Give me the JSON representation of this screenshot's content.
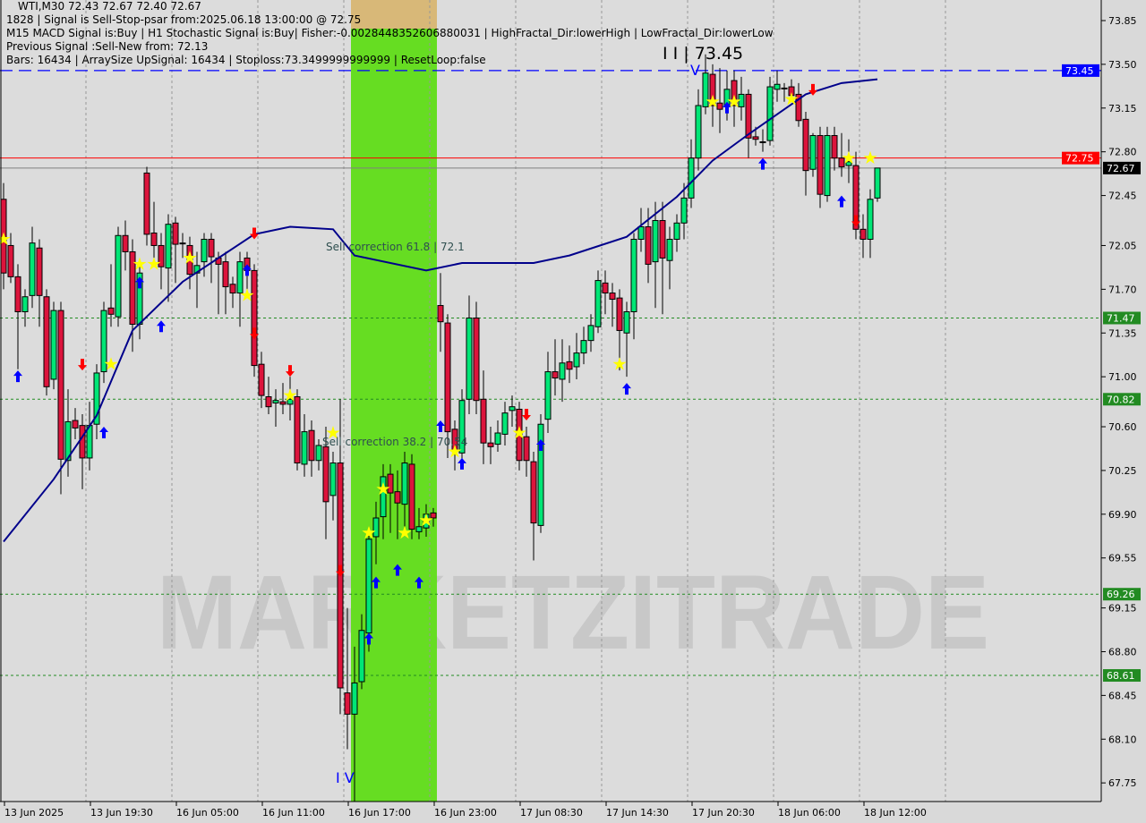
{
  "header": {
    "symbol_line": "WTI,M30  72.43 72.67 72.40 72.67",
    "signal_line": "1828 | Signal is Sell-Stop-psar from:2025.06.18 13:00:00 @ 72.75",
    "macd_line": "M15 MACD Signal is:Buy | H1 Stochastic Signal is:Buy| Fisher:-0.0028448352606880031 | HighFractal_Dir:lowerHigh | LowFractal_Dir:lowerLow",
    "previous_line": "Previous Signal :Sell-New from: 72.13",
    "bars_line": "Bars: 16434 | ArraySize UpSignal: 16434 | Stoploss:73.3499999999999 | ResetLoop:false"
  },
  "annotations": {
    "sell_618": "Sell correction 61.8 | 72.1",
    "sell_382": "Sell correction 38.2 | 70.54",
    "wave_top": "I I | 73.45",
    "wave_top_v": "V",
    "wave_bottom": "I V"
  },
  "watermark": "MARKETZITRADE",
  "colors": {
    "background": "#d9d9d9",
    "bull": "#00e676",
    "bear": "#dc143c",
    "ma": "#00008b",
    "resistance": "#0000ff",
    "signal": "#ff0000",
    "price": "#000000",
    "level": "#228b22",
    "zone": "#66dd22"
  },
  "chart_data": {
    "type": "candlestick",
    "symbol": "WTI",
    "timeframe": "M30",
    "ylim": [
      67.6,
      74.0
    ],
    "y_ticks": [
      73.85,
      73.5,
      73.15,
      72.8,
      72.45,
      72.05,
      71.7,
      71.35,
      71.0,
      70.6,
      70.25,
      69.9,
      69.55,
      69.15,
      68.8,
      68.45,
      68.1,
      67.75
    ],
    "x_ticks": [
      "13 Jun 2025",
      "13 Jun 19:30",
      "16 Jun 05:00",
      "16 Jun 11:00",
      "16 Jun 17:00",
      "16 Jun 23:00",
      "17 Jun 08:30",
      "17 Jun 14:30",
      "17 Jun 20:30",
      "18 Jun 06:00",
      "18 Jun 12:00"
    ],
    "price_labels": [
      {
        "value": "73.45",
        "bg": "#0000ff",
        "fg": "#ffffff",
        "line": "dashed"
      },
      {
        "value": "72.75",
        "bg": "#ff0000",
        "fg": "#ffffff",
        "line": "solid"
      },
      {
        "value": "72.67",
        "bg": "#000000",
        "fg": "#ffffff",
        "line": "solid"
      },
      {
        "value": "71.47",
        "bg": "#228b22",
        "fg": "#ffffff",
        "line": "dotted"
      },
      {
        "value": "70.82",
        "bg": "#228b22",
        "fg": "#ffffff",
        "line": "dotted"
      },
      {
        "value": "69.26",
        "bg": "#228b22",
        "fg": "#ffffff",
        "line": "dotted"
      },
      {
        "value": "68.61",
        "bg": "#228b22",
        "fg": "#ffffff",
        "line": "dotted"
      }
    ],
    "candles": [
      [
        72.42,
        72.55,
        71.7,
        71.83
      ],
      [
        72.05,
        72.15,
        71.75,
        71.8
      ],
      [
        71.8,
        71.9,
        71.06,
        71.52
      ],
      [
        71.52,
        71.7,
        71.4,
        71.64
      ],
      [
        71.65,
        72.2,
        71.55,
        72.07
      ],
      [
        72.03,
        72.1,
        71.4,
        71.65
      ],
      [
        71.64,
        71.7,
        70.85,
        70.92
      ],
      [
        70.98,
        71.6,
        70.9,
        71.53
      ],
      [
        71.53,
        71.6,
        70.06,
        70.34
      ],
      [
        70.33,
        70.9,
        70.2,
        70.64
      ],
      [
        70.65,
        70.75,
        70.5,
        70.59
      ],
      [
        70.61,
        70.7,
        70.1,
        70.35
      ],
      [
        70.35,
        70.8,
        70.25,
        70.61
      ],
      [
        70.62,
        71.1,
        70.5,
        71.03
      ],
      [
        71.04,
        71.6,
        70.95,
        71.53
      ],
      [
        71.55,
        71.9,
        71.4,
        71.5
      ],
      [
        71.48,
        72.2,
        71.4,
        72.13
      ],
      [
        72.13,
        72.25,
        71.85,
        72.0
      ],
      [
        72.0,
        72.1,
        71.2,
        71.42
      ],
      [
        71.42,
        71.9,
        71.3,
        71.83
      ],
      [
        72.63,
        72.68,
        72.05,
        72.14
      ],
      [
        72.15,
        72.4,
        71.95,
        72.05
      ],
      [
        72.05,
        72.15,
        71.7,
        71.88
      ],
      [
        71.87,
        72.3,
        71.6,
        72.22
      ],
      [
        72.23,
        72.28,
        71.75,
        72.06
      ],
      [
        72.07,
        72.15,
        71.95,
        72.07
      ],
      [
        72.05,
        72.12,
        71.7,
        71.82
      ],
      [
        71.83,
        72.0,
        71.55,
        71.89
      ],
      [
        71.92,
        72.15,
        71.8,
        72.1
      ],
      [
        72.1,
        72.15,
        71.75,
        71.96
      ],
      [
        71.95,
        72.0,
        71.5,
        71.9
      ],
      [
        71.92,
        72.0,
        71.5,
        71.72
      ],
      [
        71.74,
        71.8,
        71.55,
        71.67
      ],
      [
        71.67,
        72.0,
        71.4,
        71.92
      ],
      [
        71.95,
        72.0,
        71.7,
        71.85
      ],
      [
        71.85,
        71.9,
        71.0,
        71.09
      ],
      [
        71.1,
        71.2,
        70.75,
        70.85
      ],
      [
        70.84,
        71.0,
        70.7,
        70.76
      ],
      [
        70.79,
        70.9,
        70.6,
        70.81
      ],
      [
        70.8,
        70.95,
        70.7,
        70.78
      ],
      [
        70.78,
        71.0,
        70.65,
        70.82
      ],
      [
        70.84,
        70.9,
        70.25,
        70.31
      ],
      [
        70.3,
        70.7,
        70.2,
        70.56
      ],
      [
        70.57,
        70.65,
        70.2,
        70.33
      ],
      [
        70.33,
        70.5,
        70.25,
        70.45
      ],
      [
        70.44,
        70.6,
        69.7,
        70.0
      ],
      [
        70.05,
        70.4,
        69.85,
        70.31
      ],
      [
        70.31,
        70.82,
        68.3,
        68.51
      ],
      [
        68.47,
        69.15,
        68.02,
        68.3
      ],
      [
        68.3,
        68.84,
        67.58,
        68.55
      ],
      [
        68.56,
        69.1,
        68.5,
        68.97
      ],
      [
        68.95,
        69.8,
        68.8,
        69.7
      ],
      [
        69.72,
        70.0,
        69.5,
        69.87
      ],
      [
        69.88,
        70.3,
        69.7,
        70.2
      ],
      [
        70.22,
        70.3,
        69.75,
        70.07
      ],
      [
        70.08,
        70.25,
        69.7,
        69.99
      ],
      [
        69.98,
        70.4,
        69.8,
        70.31
      ],
      [
        70.3,
        70.38,
        69.7,
        69.78
      ],
      [
        69.76,
        69.95,
        69.7,
        69.8
      ],
      [
        69.79,
        69.98,
        69.72,
        69.9
      ],
      [
        69.91,
        69.95,
        69.8,
        69.87
      ],
      [
        71.57,
        71.83,
        71.2,
        71.44
      ],
      [
        71.43,
        71.5,
        70.35,
        70.56
      ],
      [
        70.58,
        70.65,
        70.25,
        70.4
      ],
      [
        70.39,
        70.9,
        70.3,
        70.81
      ],
      [
        70.82,
        71.65,
        70.7,
        71.47
      ],
      [
        71.47,
        71.6,
        70.7,
        70.81
      ],
      [
        70.82,
        71.05,
        70.3,
        70.47
      ],
      [
        70.47,
        70.6,
        70.3,
        70.44
      ],
      [
        70.46,
        70.65,
        70.4,
        70.55
      ],
      [
        70.54,
        70.8,
        70.45,
        70.71
      ],
      [
        70.73,
        70.85,
        70.6,
        70.76
      ],
      [
        70.74,
        70.8,
        70.25,
        70.33
      ],
      [
        70.52,
        70.6,
        70.2,
        70.33
      ],
      [
        70.32,
        70.4,
        69.53,
        69.83
      ],
      [
        69.81,
        70.7,
        69.75,
        70.62
      ],
      [
        70.66,
        71.2,
        70.55,
        71.04
      ],
      [
        71.04,
        71.3,
        70.85,
        70.99
      ],
      [
        70.98,
        71.3,
        70.8,
        71.11
      ],
      [
        71.12,
        71.25,
        70.95,
        71.06
      ],
      [
        71.08,
        71.35,
        70.98,
        71.19
      ],
      [
        71.19,
        71.4,
        71.1,
        71.29
      ],
      [
        71.29,
        71.5,
        71.2,
        71.41
      ],
      [
        71.4,
        71.85,
        71.35,
        71.77
      ],
      [
        71.75,
        71.85,
        71.5,
        71.67
      ],
      [
        71.67,
        71.75,
        71.4,
        71.62
      ],
      [
        71.63,
        71.7,
        71.05,
        71.37
      ],
      [
        71.35,
        71.6,
        71.0,
        71.52
      ],
      [
        71.52,
        72.15,
        71.3,
        72.1
      ],
      [
        72.1,
        72.35,
        72.0,
        72.2
      ],
      [
        72.2,
        72.35,
        71.75,
        71.9
      ],
      [
        71.92,
        72.4,
        71.55,
        72.25
      ],
      [
        72.25,
        72.4,
        71.5,
        71.95
      ],
      [
        71.93,
        72.2,
        71.7,
        72.1
      ],
      [
        72.1,
        72.3,
        72.0,
        72.23
      ],
      [
        72.23,
        72.55,
        72.1,
        72.43
      ],
      [
        72.43,
        72.9,
        72.35,
        72.75
      ],
      [
        72.75,
        73.3,
        72.65,
        73.17
      ],
      [
        73.16,
        73.58,
        73.1,
        73.43
      ],
      [
        73.42,
        73.5,
        73.0,
        73.17
      ],
      [
        73.19,
        73.47,
        72.95,
        73.14
      ],
      [
        73.16,
        73.45,
        73.05,
        73.3
      ],
      [
        73.37,
        73.45,
        73.0,
        73.17
      ],
      [
        73.16,
        73.4,
        73.05,
        73.26
      ],
      [
        73.26,
        73.3,
        72.75,
        72.91
      ],
      [
        72.92,
        73.0,
        72.85,
        72.9
      ],
      [
        72.88,
        72.98,
        72.8,
        72.88
      ],
      [
        72.89,
        73.4,
        72.85,
        73.32
      ],
      [
        73.3,
        73.45,
        73.2,
        73.34
      ],
      [
        73.31,
        73.35,
        73.2,
        73.31
      ],
      [
        73.32,
        73.38,
        73.2,
        73.25
      ],
      [
        73.26,
        73.35,
        73.0,
        73.05
      ],
      [
        73.06,
        73.12,
        72.45,
        72.65
      ],
      [
        72.66,
        72.95,
        72.6,
        72.93
      ],
      [
        72.93,
        73.0,
        72.35,
        72.46
      ],
      [
        72.45,
        73.0,
        72.4,
        72.93
      ],
      [
        72.93,
        73.0,
        72.65,
        72.75
      ],
      [
        72.75,
        72.95,
        72.6,
        72.68
      ],
      [
        72.69,
        72.9,
        72.55,
        72.72
      ],
      [
        72.69,
        72.8,
        72.1,
        72.18
      ],
      [
        72.18,
        72.3,
        71.95,
        72.1
      ],
      [
        72.1,
        72.5,
        71.95,
        72.42
      ],
      [
        72.43,
        72.67,
        72.4,
        72.67
      ]
    ],
    "ma_series": [
      [
        0,
        69.68
      ],
      [
        7,
        70.18
      ],
      [
        13,
        70.69
      ],
      [
        18,
        71.37
      ],
      [
        25,
        71.76
      ],
      [
        35,
        72.14
      ],
      [
        40,
        72.2
      ],
      [
        46,
        72.18
      ],
      [
        49,
        71.97
      ],
      [
        59,
        71.85
      ],
      [
        64,
        71.91
      ],
      [
        74,
        71.91
      ],
      [
        79,
        71.97
      ],
      [
        87,
        72.12
      ],
      [
        94,
        72.44
      ],
      [
        99,
        72.73
      ],
      [
        104,
        72.94
      ],
      [
        112,
        73.26
      ],
      [
        117,
        73.35
      ],
      [
        122,
        73.38
      ]
    ],
    "highlight_zone": {
      "from_index": 49,
      "to_index": 60
    },
    "buy_arrows": [
      [
        2,
        71.0
      ],
      [
        14,
        70.55
      ],
      [
        19,
        71.75
      ],
      [
        22,
        71.4
      ],
      [
        34,
        71.85
      ],
      [
        51,
        68.9
      ],
      [
        52,
        69.35
      ],
      [
        55,
        69.45
      ],
      [
        58,
        69.35
      ],
      [
        61,
        70.6
      ],
      [
        64,
        70.3
      ],
      [
        75,
        70.45
      ],
      [
        87,
        70.9
      ],
      [
        101,
        73.15
      ],
      [
        106,
        72.7
      ],
      [
        117,
        72.4
      ]
    ],
    "sell_arrows": [
      [
        11,
        71.1
      ],
      [
        35,
        72.15
      ],
      [
        35,
        71.35
      ],
      [
        40,
        71.05
      ],
      [
        47,
        69.45
      ],
      [
        73,
        70.7
      ],
      [
        113,
        73.3
      ],
      [
        119,
        72.25
      ]
    ],
    "stars": [
      [
        0,
        72.1
      ],
      [
        15,
        71.1
      ],
      [
        19,
        71.9
      ],
      [
        21,
        71.9
      ],
      [
        26,
        71.95
      ],
      [
        34,
        71.65
      ],
      [
        40,
        70.85
      ],
      [
        46,
        70.55
      ],
      [
        51,
        69.75
      ],
      [
        53,
        70.1
      ],
      [
        56,
        69.75
      ],
      [
        59,
        69.85
      ],
      [
        63,
        70.4
      ],
      [
        72,
        70.55
      ],
      [
        86,
        71.1
      ],
      [
        99,
        73.2
      ],
      [
        102,
        73.2
      ],
      [
        110,
        73.22
      ],
      [
        118,
        72.75
      ],
      [
        121,
        72.75
      ]
    ]
  }
}
